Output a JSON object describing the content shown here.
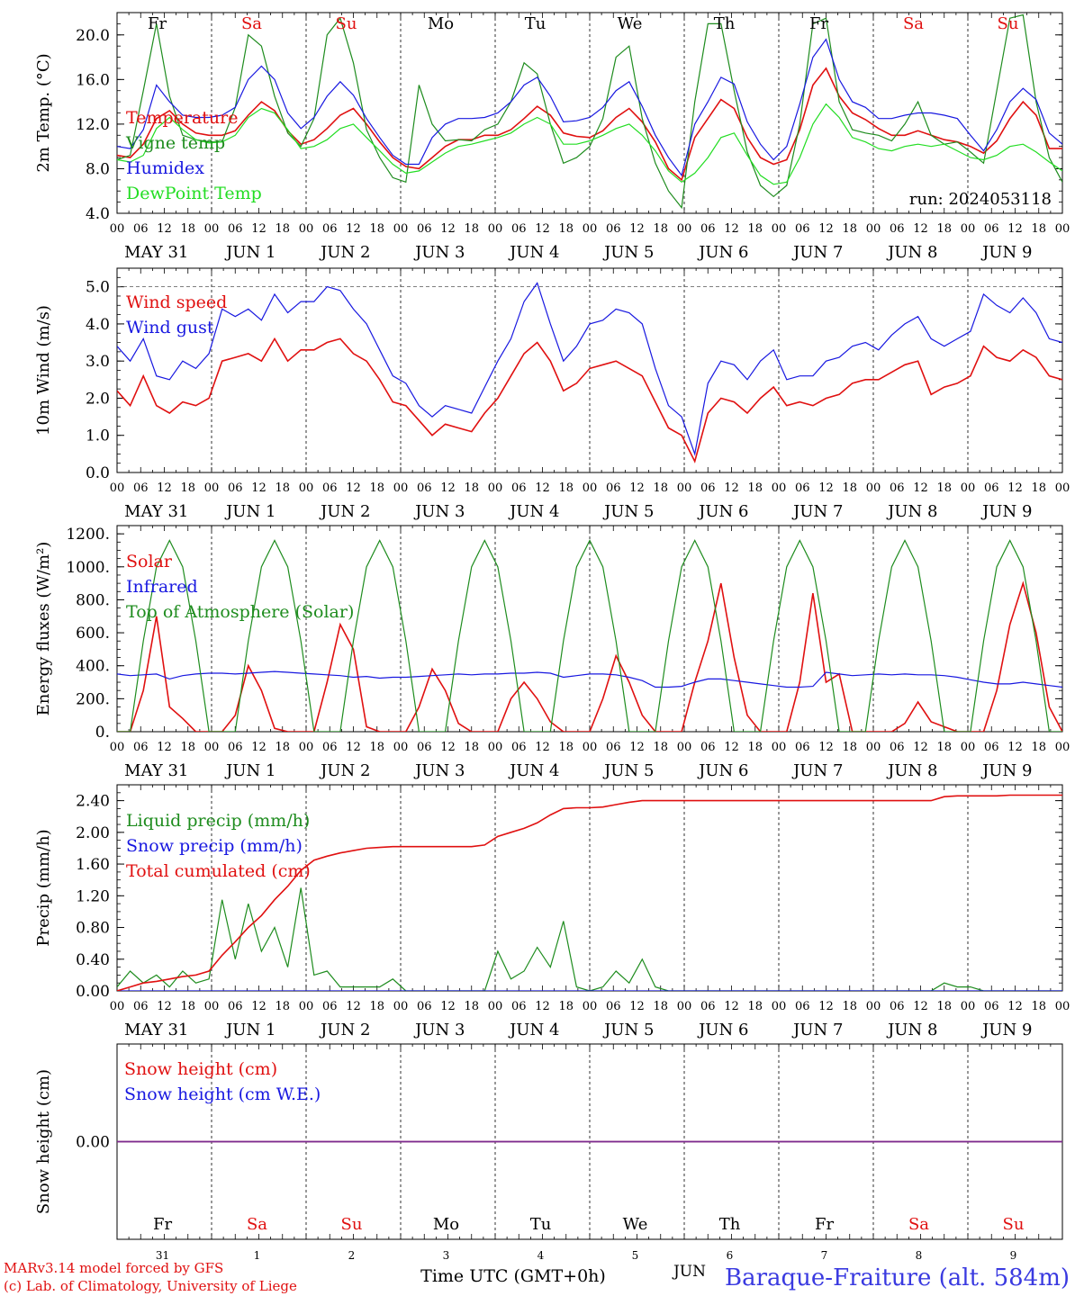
{
  "chart_data": [
    {
      "type": "line",
      "title": "",
      "ylabel": "2m Temp. (°C)",
      "ylim": [
        4,
        22
      ],
      "yticks": [
        "4.0",
        "8.0",
        "12.0",
        "16.0",
        "20.0"
      ],
      "x_unit": "hours since 2024-05-31 00 UTC (3-hourly, 0..240)",
      "legend": "top-left",
      "run_label": "run: 2024053118",
      "series": [
        {
          "name": "Temperature",
          "color": "#e01010",
          "values": [
            9.2,
            9.0,
            10.2,
            12.5,
            13.2,
            12.0,
            11.2,
            11.0,
            11.0,
            11.4,
            12.8,
            14.0,
            13.2,
            11.4,
            10.2,
            10.6,
            11.6,
            12.8,
            13.4,
            12.0,
            10.4,
            9.0,
            8.2,
            8.0,
            9.0,
            10.0,
            10.6,
            10.6,
            11.0,
            11.0,
            11.5,
            12.5,
            13.6,
            12.8,
            11.2,
            10.9,
            10.8,
            11.4,
            12.6,
            13.4,
            12.2,
            10.4,
            8.0,
            7.0,
            10.8,
            12.5,
            14.2,
            13.4,
            10.8,
            9.0,
            8.4,
            8.8,
            11.5,
            15.5,
            17.0,
            14.5,
            13.0,
            12.4,
            11.6,
            11.0,
            11.0,
            11.4,
            11.0,
            10.6,
            10.4,
            10.0,
            9.4,
            10.5,
            12.5,
            14.0,
            12.8,
            9.8,
            9.8
          ]
        },
        {
          "name": "Vigne temp",
          "color": "#1e8c1e",
          "values": [
            8.8,
            9.2,
            15.0,
            21.0,
            14.5,
            11.0,
            10.6,
            10.4,
            10.4,
            13.5,
            20.0,
            19.0,
            14.5,
            11.2,
            10.0,
            12.5,
            20.0,
            21.5,
            17.5,
            11.5,
            9.0,
            7.2,
            6.8,
            15.5,
            12.0,
            10.5,
            10.6,
            10.5,
            11.5,
            12.0,
            14.0,
            17.5,
            16.5,
            12.0,
            8.5,
            9.0,
            10.0,
            12.5,
            18.0,
            19.0,
            12.5,
            8.5,
            6.0,
            4.5,
            14.0,
            21.0,
            21.0,
            15.0,
            9.5,
            6.5,
            5.5,
            6.5,
            12.0,
            21.0,
            21.5,
            14.0,
            11.5,
            11.2,
            11.0,
            10.5,
            12.0,
            14.0,
            11.0,
            10.2,
            10.4,
            9.5,
            8.5,
            15.0,
            21.5,
            21.8,
            14.0,
            9.0,
            6.8
          ]
        },
        {
          "name": "Humidex",
          "color": "#1818e0",
          "values": [
            10.0,
            9.8,
            11.5,
            15.5,
            14.0,
            12.8,
            12.6,
            12.6,
            12.8,
            13.5,
            16.0,
            17.2,
            16.0,
            13.0,
            11.6,
            12.6,
            14.5,
            15.8,
            14.6,
            12.5,
            10.8,
            9.2,
            8.4,
            8.4,
            10.8,
            12.0,
            12.5,
            12.5,
            12.6,
            13.0,
            14.0,
            15.5,
            16.2,
            14.5,
            12.2,
            12.3,
            12.6,
            13.5,
            15.0,
            15.8,
            13.6,
            11.0,
            9.0,
            7.4,
            12.0,
            14.0,
            16.2,
            15.6,
            12.2,
            10.2,
            8.8,
            10.0,
            13.8,
            18.0,
            19.6,
            16.0,
            14.0,
            13.5,
            12.5,
            12.5,
            12.8,
            13.0,
            13.0,
            12.8,
            12.5,
            11.0,
            9.6,
            11.5,
            14.0,
            15.2,
            14.2,
            11.2,
            10.2
          ]
        },
        {
          "name": "DewPoint Temp",
          "color": "#22dd22",
          "values": [
            8.8,
            8.6,
            9.2,
            11.6,
            12.6,
            11.5,
            10.6,
            10.3,
            10.4,
            11.0,
            12.6,
            13.4,
            13.0,
            11.5,
            9.8,
            10.0,
            10.6,
            11.6,
            12.0,
            10.8,
            9.6,
            8.4,
            7.6,
            7.8,
            8.6,
            9.4,
            10.0,
            10.2,
            10.5,
            10.8,
            11.2,
            12.0,
            12.6,
            12.0,
            10.2,
            10.2,
            10.5,
            11.0,
            11.6,
            12.0,
            11.0,
            9.6,
            7.8,
            6.8,
            7.6,
            9.0,
            10.8,
            11.2,
            9.2,
            7.4,
            6.6,
            6.8,
            9.0,
            12.0,
            13.8,
            12.6,
            10.8,
            10.4,
            9.8,
            9.6,
            10.0,
            10.2,
            10.0,
            10.2,
            9.6,
            9.0,
            8.8,
            9.2,
            10.0,
            10.2,
            9.5,
            8.6,
            7.8
          ]
        }
      ]
    },
    {
      "type": "line",
      "title": "",
      "ylabel": "10m Wind (m/s)",
      "ylim": [
        0,
        5.5
      ],
      "yticks": [
        "0.0",
        "1.0",
        "2.0",
        "3.0",
        "4.0",
        "5.0"
      ],
      "ref_line": 5.0,
      "x_unit": "hours since 2024-05-31 00 UTC (3-hourly, 0..240)",
      "legend": "top-left",
      "series": [
        {
          "name": "Wind speed",
          "color": "#e01010",
          "values": [
            2.2,
            1.8,
            2.6,
            1.8,
            1.6,
            1.9,
            1.8,
            2.0,
            3.0,
            3.1,
            3.2,
            3.0,
            3.6,
            3.0,
            3.3,
            3.3,
            3.5,
            3.6,
            3.2,
            3.0,
            2.5,
            1.9,
            1.8,
            1.4,
            1.0,
            1.3,
            1.2,
            1.1,
            1.6,
            2.0,
            2.6,
            3.2,
            3.5,
            3.0,
            2.2,
            2.4,
            2.8,
            2.9,
            3.0,
            2.8,
            2.6,
            1.9,
            1.2,
            1.0,
            0.3,
            1.6,
            2.0,
            1.9,
            1.6,
            2.0,
            2.3,
            1.8,
            1.9,
            1.8,
            2.0,
            2.1,
            2.4,
            2.5,
            2.5,
            2.7,
            2.9,
            3.0,
            2.1,
            2.3,
            2.4,
            2.6,
            3.4,
            3.1,
            3.0,
            3.3,
            3.1,
            2.6,
            2.5
          ]
        },
        {
          "name": "Wind gust",
          "color": "#1818e0",
          "values": [
            3.4,
            3.0,
            3.6,
            2.6,
            2.5,
            3.0,
            2.8,
            3.2,
            4.4,
            4.2,
            4.4,
            4.1,
            4.8,
            4.3,
            4.6,
            4.6,
            5.0,
            4.9,
            4.4,
            4.0,
            3.3,
            2.6,
            2.4,
            1.8,
            1.5,
            1.8,
            1.7,
            1.6,
            2.3,
            3.0,
            3.6,
            4.6,
            5.1,
            4.0,
            3.0,
            3.4,
            4.0,
            4.1,
            4.4,
            4.3,
            4.0,
            2.8,
            1.8,
            1.5,
            0.5,
            2.4,
            3.0,
            2.9,
            2.5,
            3.0,
            3.3,
            2.5,
            2.6,
            2.6,
            3.0,
            3.1,
            3.4,
            3.5,
            3.3,
            3.7,
            4.0,
            4.2,
            3.6,
            3.4,
            3.6,
            3.8,
            4.8,
            4.5,
            4.3,
            4.7,
            4.3,
            3.6,
            3.5
          ]
        }
      ]
    },
    {
      "type": "line",
      "title": "",
      "ylabel": "Energy fluxes (W/m²)",
      "ylim": [
        0,
        1250
      ],
      "yticks": [
        "0.",
        "200.",
        "400.",
        "600.",
        "800.",
        "1000.",
        "1200."
      ],
      "x_unit": "hours since 2024-05-31 00 UTC (3-hourly, 0..240)",
      "legend": "top-left",
      "series": [
        {
          "name": "Solar",
          "color": "#e01010",
          "values": [
            0,
            0,
            250,
            700,
            150,
            80,
            0,
            0,
            0,
            100,
            400,
            250,
            20,
            0,
            0,
            0,
            300,
            650,
            500,
            30,
            0,
            0,
            0,
            150,
            380,
            250,
            50,
            0,
            0,
            0,
            200,
            300,
            200,
            60,
            0,
            0,
            0,
            200,
            460,
            300,
            100,
            0,
            0,
            0,
            300,
            550,
            900,
            450,
            100,
            0,
            0,
            0,
            300,
            840,
            300,
            350,
            0,
            0,
            0,
            0,
            50,
            180,
            60,
            30,
            0,
            0,
            0,
            250,
            650,
            900,
            600,
            150,
            0
          ]
        },
        {
          "name": "Infrared",
          "color": "#1818e0",
          "values": [
            350,
            340,
            345,
            350,
            320,
            340,
            350,
            355,
            355,
            350,
            355,
            360,
            365,
            360,
            355,
            350,
            345,
            340,
            330,
            335,
            325,
            330,
            330,
            335,
            340,
            345,
            350,
            345,
            350,
            350,
            355,
            355,
            360,
            355,
            330,
            340,
            350,
            350,
            345,
            330,
            310,
            270,
            270,
            275,
            300,
            320,
            320,
            310,
            300,
            290,
            280,
            270,
            270,
            275,
            360,
            350,
            340,
            345,
            350,
            345,
            350,
            345,
            345,
            340,
            330,
            315,
            300,
            290,
            290,
            300,
            290,
            280,
            270
          ]
        },
        {
          "name": "Top of Atmosphere (Solar)",
          "color": "#1e8c1e",
          "values": [
            0,
            0,
            550,
            1000,
            1160,
            1000,
            550,
            0,
            0,
            0,
            550,
            1000,
            1160,
            1000,
            550,
            0,
            0,
            0,
            550,
            1000,
            1160,
            1000,
            550,
            0,
            0,
            0,
            550,
            1000,
            1160,
            1000,
            550,
            0,
            0,
            0,
            550,
            1000,
            1160,
            1000,
            550,
            0,
            0,
            0,
            550,
            1000,
            1160,
            1000,
            550,
            0,
            0,
            0,
            550,
            1000,
            1160,
            1000,
            550,
            0,
            0,
            0,
            550,
            1000,
            1160,
            1000,
            550,
            0,
            0,
            0,
            550,
            1000,
            1160,
            1000,
            550,
            0,
            0
          ]
        }
      ]
    },
    {
      "type": "line",
      "title": "",
      "ylabel": "Precip (mm/h)",
      "ylim": [
        0,
        2.6
      ],
      "yticks": [
        "0.00",
        "0.40",
        "0.80",
        "1.20",
        "1.60",
        "2.00",
        "2.40"
      ],
      "x_unit": "hours since 2024-05-31 00 UTC (3-hourly, 0..240)",
      "legend": "top-left",
      "series": [
        {
          "name": "Liquid precip (mm/h)",
          "color": "#1e8c1e",
          "values": [
            0.05,
            0.25,
            0.1,
            0.2,
            0.05,
            0.25,
            0.1,
            0.15,
            1.15,
            0.4,
            1.1,
            0.5,
            0.8,
            0.3,
            1.3,
            0.2,
            0.25,
            0.05,
            0.05,
            0.05,
            0.05,
            0.15,
            0,
            0,
            0,
            0,
            0,
            0,
            0,
            0.5,
            0.15,
            0.25,
            0.55,
            0.3,
            0.88,
            0.05,
            0,
            0.05,
            0.25,
            0.1,
            0.4,
            0.05,
            0,
            0,
            0,
            0,
            0,
            0,
            0,
            0,
            0,
            0,
            0,
            0,
            0,
            0,
            0,
            0,
            0,
            0,
            0,
            0,
            0,
            0.1,
            0.05,
            0.05,
            0,
            0,
            0,
            0,
            0,
            0,
            0
          ]
        },
        {
          "name": "Snow precip (mm/h)",
          "color": "#1818e0",
          "values": [
            0,
            0,
            0,
            0,
            0,
            0,
            0,
            0,
            0,
            0,
            0,
            0,
            0,
            0,
            0,
            0,
            0,
            0,
            0,
            0,
            0,
            0,
            0,
            0,
            0,
            0,
            0,
            0,
            0,
            0,
            0,
            0,
            0,
            0,
            0,
            0,
            0,
            0,
            0,
            0,
            0,
            0,
            0,
            0,
            0,
            0,
            0,
            0,
            0,
            0,
            0,
            0,
            0,
            0,
            0,
            0,
            0,
            0,
            0,
            0,
            0,
            0,
            0,
            0,
            0,
            0,
            0,
            0,
            0,
            0,
            0,
            0,
            0
          ]
        },
        {
          "name": "Total cumulated (cm)",
          "color": "#e01010",
          "values": [
            0.0,
            0.05,
            0.1,
            0.12,
            0.15,
            0.18,
            0.2,
            0.25,
            0.45,
            0.62,
            0.8,
            0.95,
            1.15,
            1.32,
            1.52,
            1.65,
            1.7,
            1.74,
            1.77,
            1.8,
            1.81,
            1.82,
            1.82,
            1.82,
            1.82,
            1.82,
            1.82,
            1.82,
            1.84,
            1.95,
            2.0,
            2.05,
            2.12,
            2.22,
            2.3,
            2.31,
            2.31,
            2.32,
            2.35,
            2.38,
            2.4,
            2.4,
            2.4,
            2.4,
            2.4,
            2.4,
            2.4,
            2.4,
            2.4,
            2.4,
            2.4,
            2.4,
            2.4,
            2.4,
            2.4,
            2.4,
            2.4,
            2.4,
            2.4,
            2.4,
            2.4,
            2.4,
            2.4,
            2.45,
            2.46,
            2.46,
            2.46,
            2.46,
            2.47,
            2.47,
            2.47,
            2.47,
            2.47
          ]
        }
      ]
    },
    {
      "type": "line",
      "title": "",
      "ylabel": "Snow height (cm)",
      "ylim": [
        -1,
        1
      ],
      "yticks": [
        "0.00"
      ],
      "x_unit": "hours since 2024-05-31 00 UTC (3-hourly, 0..240)",
      "legend": "top-left",
      "series": [
        {
          "name": "Snow height (cm)",
          "color": "#e01010",
          "values": [
            0,
            0
          ]
        },
        {
          "name": "Snow height (cm W.E.)",
          "color": "#1818e0",
          "values": [
            0,
            0
          ]
        }
      ]
    }
  ],
  "axis": {
    "hour_ticks": [
      "00",
      "06",
      "12",
      "18"
    ],
    "day_labels": [
      "MAY 31",
      "JUN  1",
      "JUN  2",
      "JUN  3",
      "JUN  4",
      "JUN  5",
      "JUN  6",
      "JUN  7",
      "JUN  8",
      "JUN  9"
    ],
    "weekdays": [
      "Fr",
      "Sa",
      "Su",
      "Mo",
      "Tu",
      "We",
      "Th",
      "Fr",
      "Sa",
      "Su"
    ],
    "weekend_color": "#e01010",
    "weekday_color": "#000000",
    "bottom_day_numbers": [
      "31",
      "1",
      "2",
      "3",
      "4",
      "5",
      "6",
      "7",
      "8",
      "9"
    ],
    "bottom_month": "JUN",
    "end_tick": "00"
  },
  "footer": {
    "model_credit": "MARv3.14 model forced by GFS",
    "lab_credit": "(c) Lab. of Climatology, University of Liege",
    "xlabel": "Time UTC (GMT+0h)",
    "station": "Baraque-Fraiture (alt. 584m)"
  }
}
